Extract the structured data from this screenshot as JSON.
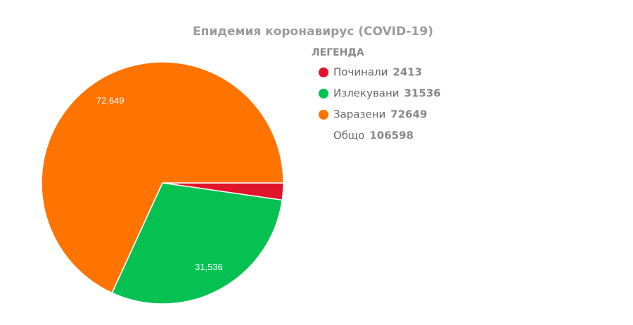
{
  "chart_data": {
    "type": "pie",
    "title": "Епидемия коронавирус (COVID-19)",
    "legend_title": "ЛЕГЕНДА",
    "categories": [
      "Починали",
      "Излекувани",
      "Заразени"
    ],
    "values": [
      2413,
      31536,
      72649
    ],
    "value_labels": [
      null,
      "31,536",
      "72,649"
    ],
    "colors": [
      "#e0142a",
      "#05c152",
      "#ff7300"
    ],
    "total_label": "Общо",
    "total": 106598
  }
}
